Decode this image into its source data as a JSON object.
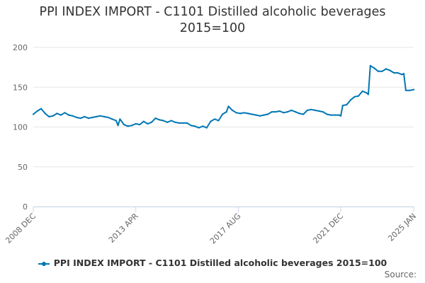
{
  "title_line1": "PPI INDEX IMPORT - C1101 Distilled alcoholic beverages",
  "title_line2": "2015=100",
  "source_label": "Source:",
  "colors": {
    "series": "#0077b4",
    "grid": "#e6e6e6",
    "axis": "#ccd6eb",
    "text": "#333333"
  },
  "chart_data": {
    "type": "line",
    "title": "PPI INDEX IMPORT - C1101 Distilled alcoholic beverages 2015=100",
    "xlabel": "",
    "ylabel": "",
    "ylim": [
      0,
      200
    ],
    "yticks": [
      0,
      50,
      100,
      150,
      200
    ],
    "xlim": [
      "2008-12",
      "2025-01"
    ],
    "xtick_labels": [
      {
        "label": "2008 DEC",
        "date": "2008-12"
      },
      {
        "label": "2013 APR",
        "date": "2013-04"
      },
      {
        "label": "2017 AUG",
        "date": "2017-08"
      },
      {
        "label": "2021 DEC",
        "date": "2021-12"
      },
      {
        "label": "2025 JAN",
        "date": "2025-01"
      }
    ],
    "grid": "horizontal",
    "legend": "bottom",
    "series": [
      {
        "name": "PPI INDEX IMPORT - C1101 Distilled alcoholic beverages 2015=100",
        "color": "#0077b4",
        "points": [
          [
            "2008-12",
            116
          ],
          [
            "2009-02",
            120
          ],
          [
            "2009-04",
            123
          ],
          [
            "2009-06",
            117
          ],
          [
            "2009-08",
            113
          ],
          [
            "2009-10",
            114
          ],
          [
            "2009-12",
            117
          ],
          [
            "2010-02",
            115
          ],
          [
            "2010-04",
            118
          ],
          [
            "2010-06",
            115
          ],
          [
            "2010-08",
            114
          ],
          [
            "2010-10",
            112
          ],
          [
            "2010-12",
            111
          ],
          [
            "2011-02",
            113
          ],
          [
            "2011-04",
            111
          ],
          [
            "2011-06",
            112
          ],
          [
            "2011-08",
            113
          ],
          [
            "2011-10",
            114
          ],
          [
            "2011-12",
            113
          ],
          [
            "2012-02",
            112
          ],
          [
            "2012-04",
            110
          ],
          [
            "2012-06",
            108
          ],
          [
            "2012-07",
            102
          ],
          [
            "2012-08",
            110
          ],
          [
            "2012-10",
            103
          ],
          [
            "2012-12",
            101
          ],
          [
            "2013-02",
            102
          ],
          [
            "2013-04",
            104
          ],
          [
            "2013-06",
            103
          ],
          [
            "2013-08",
            107
          ],
          [
            "2013-10",
            104
          ],
          [
            "2013-12",
            106
          ],
          [
            "2014-02",
            111
          ],
          [
            "2014-04",
            109
          ],
          [
            "2014-06",
            108
          ],
          [
            "2014-08",
            106
          ],
          [
            "2014-10",
            108
          ],
          [
            "2014-12",
            106
          ],
          [
            "2015-02",
            105
          ],
          [
            "2015-04",
            105
          ],
          [
            "2015-06",
            105
          ],
          [
            "2015-08",
            102
          ],
          [
            "2015-10",
            101
          ],
          [
            "2015-12",
            99
          ],
          [
            "2016-02",
            101
          ],
          [
            "2016-04",
            99
          ],
          [
            "2016-06",
            107
          ],
          [
            "2016-08",
            110
          ],
          [
            "2016-10",
            108
          ],
          [
            "2016-12",
            116
          ],
          [
            "2017-02",
            119
          ],
          [
            "2017-03",
            126
          ],
          [
            "2017-05",
            121
          ],
          [
            "2017-07",
            118
          ],
          [
            "2017-09",
            117
          ],
          [
            "2017-11",
            118
          ],
          [
            "2018-01",
            117
          ],
          [
            "2018-03",
            116
          ],
          [
            "2018-05",
            115
          ],
          [
            "2018-07",
            114
          ],
          [
            "2018-09",
            115
          ],
          [
            "2018-11",
            116
          ],
          [
            "2019-01",
            119
          ],
          [
            "2019-03",
            119
          ],
          [
            "2019-05",
            120
          ],
          [
            "2019-07",
            118
          ],
          [
            "2019-09",
            119
          ],
          [
            "2019-11",
            121
          ],
          [
            "2020-01",
            119
          ],
          [
            "2020-03",
            117
          ],
          [
            "2020-05",
            116
          ],
          [
            "2020-07",
            121
          ],
          [
            "2020-09",
            122
          ],
          [
            "2020-11",
            121
          ],
          [
            "2021-01",
            120
          ],
          [
            "2021-03",
            119
          ],
          [
            "2021-05",
            116
          ],
          [
            "2021-07",
            115
          ],
          [
            "2021-09",
            115
          ],
          [
            "2021-11",
            115
          ],
          [
            "2021-12",
            114
          ],
          [
            "2022-01",
            127
          ],
          [
            "2022-03",
            128
          ],
          [
            "2022-05",
            134
          ],
          [
            "2022-07",
            138
          ],
          [
            "2022-09",
            139
          ],
          [
            "2022-11",
            145
          ],
          [
            "2023-01",
            143
          ],
          [
            "2023-02",
            141
          ],
          [
            "2023-03",
            177
          ],
          [
            "2023-05",
            174
          ],
          [
            "2023-07",
            170
          ],
          [
            "2023-09",
            170
          ],
          [
            "2023-11",
            173
          ],
          [
            "2024-01",
            171
          ],
          [
            "2024-03",
            168
          ],
          [
            "2024-05",
            168
          ],
          [
            "2024-07",
            166
          ],
          [
            "2024-08",
            167
          ],
          [
            "2024-09",
            146
          ],
          [
            "2024-11",
            146
          ],
          [
            "2025-01",
            147
          ]
        ]
      }
    ]
  }
}
